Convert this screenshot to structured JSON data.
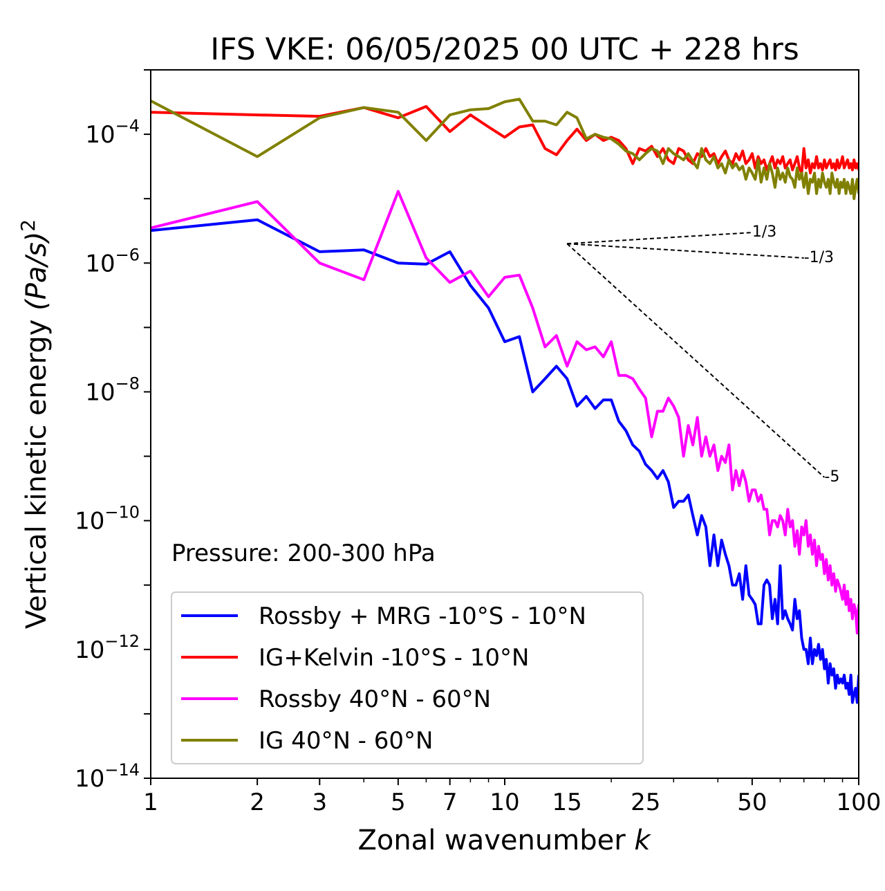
{
  "chart_data": {
    "type": "line",
    "title": "IFS VKE: 06/05/2025 00 UTC + 228 hrs",
    "xlabel": "Zonal wavenumber",
    "xlabel_var": "k",
    "ylabel": "Vertical kinetic energy",
    "ylabel_units": "(Pa/s)",
    "ylabel_exp": "2",
    "annotation": "Pressure: 200-300 hPa",
    "xscale": "log",
    "yscale": "log",
    "xlim": [
      1,
      100
    ],
    "ylim": [
      1e-14,
      0.001
    ],
    "x_ticks": [
      {
        "value": 1,
        "label": "1"
      },
      {
        "value": 2,
        "label": "2"
      },
      {
        "value": 3,
        "label": "3"
      },
      {
        "value": 5,
        "label": "5"
      },
      {
        "value": 7,
        "label": "7"
      },
      {
        "value": 10,
        "label": "10"
      },
      {
        "value": 15,
        "label": "15"
      },
      {
        "value": 25,
        "label": "25"
      },
      {
        "value": 50,
        "label": "50"
      },
      {
        "value": 100,
        "label": "100"
      }
    ],
    "y_ticks": [
      {
        "value": 0.0001,
        "base": "10",
        "exp": "−4"
      },
      {
        "value": 1e-06,
        "base": "10",
        "exp": "−6"
      },
      {
        "value": 1e-08,
        "base": "10",
        "exp": "−8"
      },
      {
        "value": 1e-10,
        "base": "10",
        "exp": "−10"
      },
      {
        "value": 1e-12,
        "base": "10",
        "exp": "−12"
      },
      {
        "value": 1e-14,
        "base": "10",
        "exp": "−14"
      }
    ],
    "legend_position": "lower-left",
    "reference_lines": [
      {
        "label": "1/3",
        "x": [
          15,
          50
        ],
        "y": [
          2e-06,
          2.98e-06
        ]
      },
      {
        "label": "-1/3",
        "x": [
          15,
          70
        ],
        "y": [
          2e-06,
          1.2e-06
        ]
      },
      {
        "label": "-5",
        "x": [
          15,
          80
        ],
        "y": [
          2e-06,
          4.7e-10
        ]
      }
    ],
    "series": [
      {
        "name": "Rossby + MRG -10°S - 10°N",
        "color": "#0000ff",
        "x": [
          1,
          2,
          3,
          4,
          5,
          6,
          7,
          8,
          9,
          10,
          11,
          12,
          13,
          14,
          15,
          16,
          17,
          18,
          19,
          20,
          21,
          22,
          23,
          24,
          25,
          26,
          27,
          28,
          29,
          30,
          31,
          32,
          33,
          34,
          35,
          36,
          37,
          38,
          39,
          40,
          41,
          42,
          43,
          44,
          45,
          46,
          47,
          48,
          49,
          50,
          51,
          52,
          53,
          54,
          55,
          56,
          57,
          58,
          59,
          60,
          61,
          62,
          63,
          64,
          65,
          66,
          67,
          68,
          69,
          70,
          71,
          72,
          73,
          74,
          75,
          76,
          77,
          78,
          79,
          80,
          81,
          82,
          83,
          84,
          85,
          86,
          87,
          88,
          89,
          90,
          91,
          92,
          93,
          94,
          95,
          96,
          97,
          98,
          99,
          100
        ],
        "y": [
          3.2e-06,
          4.7e-06,
          1.5e-06,
          1.6e-06,
          1e-06,
          9.6e-07,
          1.5e-06,
          4.5e-07,
          2e-07,
          6e-08,
          7.2e-08,
          1e-08,
          1.6e-08,
          2.5e-08,
          1.6e-08,
          6e-09,
          8.5e-09,
          5.5e-09,
          7.5e-09,
          7.5e-09,
          3.5e-09,
          2.5e-09,
          1.5e-09,
          1.2e-09,
          7.5e-10,
          6e-10,
          4.5e-10,
          6e-10,
          4e-10,
          1.6e-10,
          2e-10,
          2e-10,
          2.5e-10,
          1.2e-10,
          6e-11,
          1.2e-10,
          8e-11,
          2e-11,
          6e-11,
          2e-11,
          5e-11,
          3e-11,
          2e-11,
          1e-11,
          1e-11,
          1.5e-11,
          6e-12,
          2e-11,
          7e-12,
          6e-12,
          5e-12,
          2.5e-12,
          2.5e-12,
          1e-11,
          1.2e-11,
          1e-11,
          3e-12,
          6e-12,
          2.5e-12,
          2e-11,
          3e-12,
          4e-12,
          3e-12,
          2.5e-12,
          2e-12,
          6e-12,
          3e-12,
          4e-12,
          1.5e-12,
          1e-12,
          1e-12,
          6e-13,
          1.5e-12,
          6e-13,
          1e-12,
          8e-13,
          1.2e-12,
          7e-13,
          1e-12,
          5e-13,
          7e-13,
          3e-13,
          6e-13,
          4e-13,
          5e-13,
          2.5e-13,
          4e-13,
          3e-13,
          3.5e-13,
          3e-13,
          4e-13,
          2.5e-13,
          3e-13,
          2e-13,
          4e-13,
          1.5e-13,
          2e-13,
          2.5e-13,
          1.5e-13,
          4e-13
        ]
      },
      {
        "name": "IG+Kelvin -10°S - 10°N",
        "color": "#ff0000",
        "x": [
          1,
          2,
          3,
          4,
          5,
          6,
          7,
          8,
          9,
          10,
          11,
          12,
          13,
          14,
          15,
          16,
          17,
          18,
          19,
          20,
          21,
          22,
          23,
          24,
          25,
          26,
          27,
          28,
          29,
          30,
          31,
          32,
          33,
          34,
          35,
          36,
          37,
          38,
          39,
          40,
          41,
          42,
          43,
          44,
          45,
          46,
          47,
          48,
          49,
          50,
          51,
          52,
          53,
          54,
          55,
          56,
          57,
          58,
          59,
          60,
          61,
          62,
          63,
          64,
          65,
          66,
          67,
          68,
          69,
          70,
          71,
          72,
          73,
          74,
          75,
          76,
          77,
          78,
          79,
          80,
          81,
          82,
          83,
          84,
          85,
          86,
          87,
          88,
          89,
          90,
          91,
          92,
          93,
          94,
          95,
          96,
          97,
          98,
          99,
          100
        ],
        "y": [
          0.00022,
          0.0002,
          0.00019,
          0.00026,
          0.00018,
          0.00027,
          0.00011,
          0.0002,
          0.00013,
          9e-05,
          0.00013,
          0.00014,
          6e-05,
          4.8e-05,
          8e-05,
          0.00012,
          8e-05,
          0.0001,
          8e-05,
          9e-05,
          8e-05,
          6e-05,
          3.5e-05,
          6e-05,
          5.5e-05,
          6.5e-05,
          4.5e-05,
          6e-05,
          4e-05,
          3.5e-05,
          6e-05,
          5.5e-05,
          4e-05,
          3.5e-05,
          5e-05,
          4.5e-05,
          6e-05,
          4.5e-05,
          5e-05,
          3.5e-05,
          4.5e-05,
          5.5e-05,
          4e-05,
          3.5e-05,
          5e-05,
          4e-05,
          5.5e-05,
          3.5e-05,
          4e-05,
          5e-05,
          3e-05,
          4.5e-05,
          3.5e-05,
          4e-05,
          2.8e-05,
          3.5e-05,
          4.5e-05,
          3e-05,
          4e-05,
          3.5e-05,
          4.5e-05,
          3e-05,
          3.5e-05,
          4e-05,
          2.8e-05,
          3.5e-05,
          4.5e-05,
          3e-05,
          2.5e-05,
          6e-05,
          3e-05,
          4e-05,
          2.5e-05,
          3.5e-05,
          3e-05,
          4.5e-05,
          3e-05,
          3.5e-05,
          2.8e-05,
          4e-05,
          3e-05,
          3.5e-05,
          4e-05,
          3e-05,
          3.5e-05,
          2.8e-05,
          4e-05,
          3e-05,
          3.5e-05,
          4.5e-05,
          3e-05,
          3.5e-05,
          4e-05,
          3e-05,
          3.5e-05,
          2.8e-05,
          4e-05,
          3e-05,
          3.5e-05,
          2.8e-05
        ]
      },
      {
        "name": "Rossby 40°N - 60°N",
        "color": "#ff00ff",
        "x": [
          1,
          2,
          3,
          4,
          5,
          6,
          7,
          8,
          9,
          10,
          11,
          12,
          13,
          14,
          15,
          16,
          17,
          18,
          19,
          20,
          21,
          22,
          23,
          24,
          25,
          26,
          27,
          28,
          29,
          30,
          31,
          32,
          33,
          34,
          35,
          36,
          37,
          38,
          39,
          40,
          41,
          42,
          43,
          44,
          45,
          46,
          47,
          48,
          49,
          50,
          51,
          52,
          53,
          54,
          55,
          56,
          57,
          58,
          59,
          60,
          61,
          62,
          63,
          64,
          65,
          66,
          67,
          68,
          69,
          70,
          71,
          72,
          73,
          74,
          75,
          76,
          77,
          78,
          79,
          80,
          81,
          82,
          83,
          84,
          85,
          86,
          87,
          88,
          89,
          90,
          91,
          92,
          93,
          94,
          95,
          96,
          97,
          98,
          99,
          100
        ],
        "y": [
          3.5e-06,
          9e-06,
          1e-06,
          5.5e-07,
          1.3e-05,
          1.2e-06,
          5e-07,
          7.5e-07,
          3e-07,
          6e-07,
          6.5e-07,
          2e-07,
          5e-08,
          7.5e-08,
          2.5e-08,
          6e-08,
          4.5e-08,
          5e-08,
          3.5e-08,
          6e-08,
          1.8e-08,
          1.8e-08,
          1.6e-08,
          1.1e-08,
          8e-09,
          2e-09,
          5e-09,
          5e-09,
          8e-09,
          6e-09,
          4e-09,
          1e-09,
          3e-09,
          1.5e-09,
          4e-09,
          1e-09,
          2e-09,
          1e-09,
          1.5e-09,
          6e-10,
          1e-09,
          8e-10,
          1.5e-09,
          3e-10,
          6e-10,
          3.5e-10,
          6e-10,
          4e-10,
          2e-10,
          3e-10,
          3e-10,
          2e-10,
          2.5e-10,
          1.5e-10,
          1.5e-10,
          6e-11,
          1e-10,
          1e-10,
          8e-11,
          1.2e-10,
          1e-10,
          6e-11,
          1.5e-10,
          8e-11,
          1e-10,
          4e-11,
          7e-11,
          3e-11,
          8e-11,
          6e-11,
          1e-10,
          4e-11,
          6e-11,
          3e-11,
          5e-11,
          2e-11,
          4e-11,
          2.5e-11,
          3e-11,
          1.5e-11,
          2.5e-11,
          1.2e-11,
          2e-11,
          1e-11,
          1.5e-11,
          8e-12,
          1.2e-11,
          1e-11,
          8e-12,
          6e-12,
          1e-11,
          5e-12,
          8e-12,
          4e-12,
          6e-12,
          3e-12,
          5e-12,
          4e-12,
          1.8e-12,
          5e-12
        ]
      },
      {
        "name": "IG 40°N - 60°N",
        "color": "#808000",
        "x": [
          1,
          2,
          3,
          4,
          5,
          6,
          7,
          8,
          9,
          10,
          11,
          12,
          13,
          14,
          15,
          16,
          17,
          18,
          19,
          20,
          21,
          22,
          23,
          24,
          25,
          26,
          27,
          28,
          29,
          30,
          31,
          32,
          33,
          34,
          35,
          36,
          37,
          38,
          39,
          40,
          41,
          42,
          43,
          44,
          45,
          46,
          47,
          48,
          49,
          50,
          51,
          52,
          53,
          54,
          55,
          56,
          57,
          58,
          59,
          60,
          61,
          62,
          63,
          64,
          65,
          66,
          67,
          68,
          69,
          70,
          71,
          72,
          73,
          74,
          75,
          76,
          77,
          78,
          79,
          80,
          81,
          82,
          83,
          84,
          85,
          86,
          87,
          88,
          89,
          90,
          91,
          92,
          93,
          94,
          95,
          96,
          97,
          98,
          99,
          100
        ],
        "y": [
          0.00033,
          4.5e-05,
          0.00018,
          0.00026,
          0.00022,
          8e-05,
          0.0002,
          0.00024,
          0.00025,
          0.00032,
          0.00035,
          0.00016,
          0.00016,
          0.00014,
          0.00022,
          0.00018,
          8.5e-05,
          0.0001,
          9e-05,
          8.5e-05,
          7e-05,
          5.5e-05,
          5e-05,
          4e-05,
          5e-05,
          6e-05,
          5.5e-05,
          3.5e-05,
          6e-05,
          5e-05,
          4.5e-05,
          4e-05,
          5e-05,
          3.8e-05,
          3e-05,
          6e-05,
          4e-05,
          3.5e-05,
          4.5e-05,
          3e-05,
          3.5e-05,
          2.5e-05,
          4e-05,
          3e-05,
          3.5e-05,
          2.8e-05,
          3.2e-05,
          2e-05,
          3e-05,
          2.5e-05,
          2e-05,
          4e-05,
          1.8e-05,
          3e-05,
          2e-05,
          3.5e-05,
          2.5e-05,
          1.5e-05,
          3e-05,
          2e-05,
          2.5e-05,
          1.8e-05,
          3e-05,
          2.2e-05,
          2e-05,
          1.5e-05,
          3e-05,
          2e-05,
          2.5e-05,
          1.5e-05,
          2.5e-05,
          1.2e-05,
          2e-05,
          1.8e-05,
          2.5e-05,
          1.2e-05,
          2e-05,
          1.5e-05,
          2.5e-05,
          1.8e-05,
          1.5e-05,
          2e-05,
          1.2e-05,
          2.5e-05,
          1.8e-05,
          1.5e-05,
          2e-05,
          1.2e-05,
          1.8e-05,
          1.5e-05,
          2e-05,
          1.2e-05,
          1.8e-05,
          1.5e-05,
          1.2e-05,
          2e-05,
          1e-05,
          1.5e-05,
          2e-05,
          1.2e-05
        ]
      }
    ]
  }
}
